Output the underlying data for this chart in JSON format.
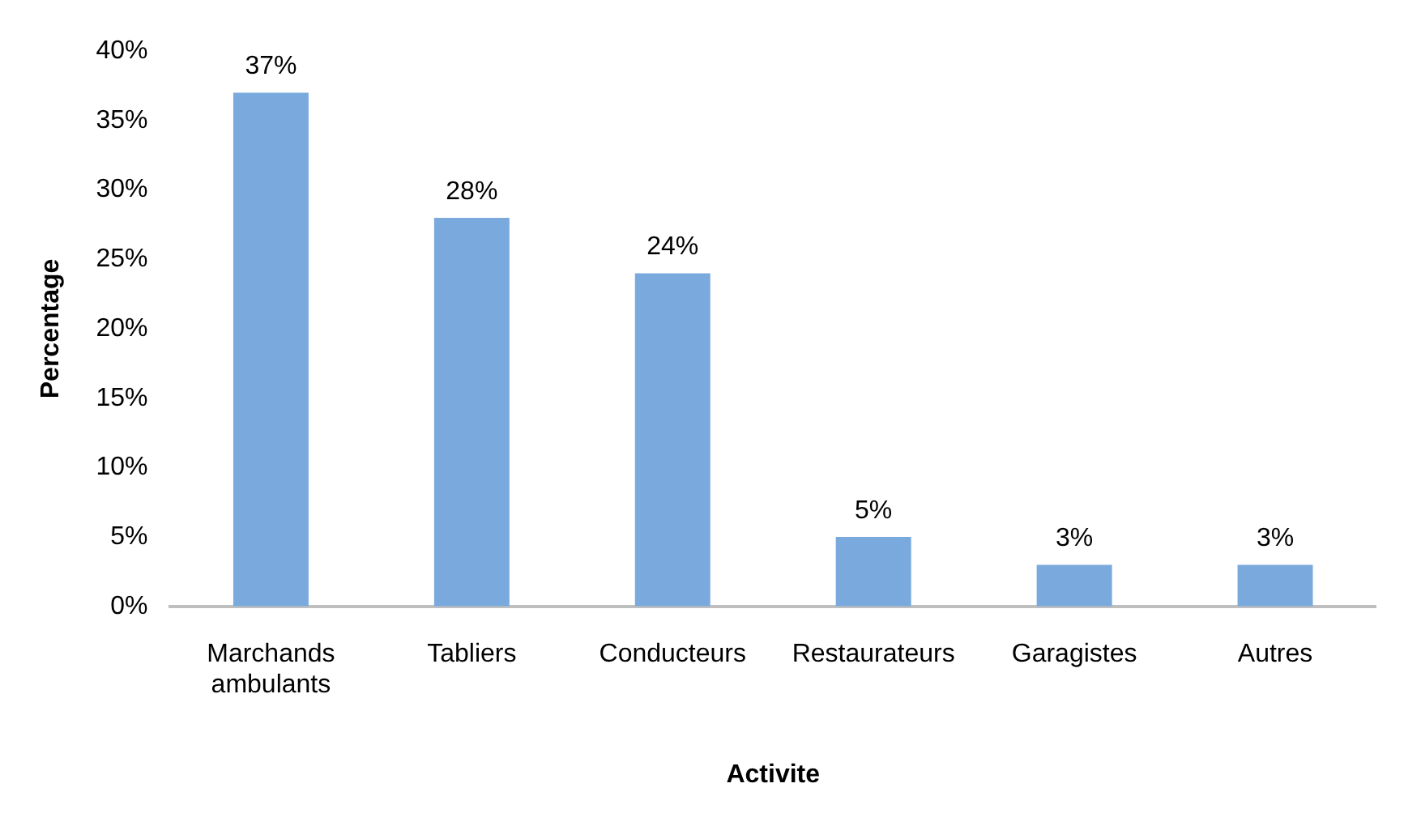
{
  "chart_data": {
    "type": "bar",
    "xlabel": "Activite",
    "ylabel": "Percentage",
    "categories": [
      "Marchands ambulants",
      "Tabliers",
      "Conducteurs",
      "Restaurateurs",
      "Garagistes",
      "Autres"
    ],
    "values": [
      37,
      28,
      24,
      5,
      3,
      3
    ],
    "value_labels": [
      "37%",
      "28%",
      "24%",
      "5%",
      "3%",
      "3%"
    ],
    "color": "#7aaadd",
    "ylim": [
      0,
      40
    ],
    "yticks": [
      {
        "value": 0,
        "label": "0%"
      },
      {
        "value": 5,
        "label": "5%"
      },
      {
        "value": 10,
        "label": "10%"
      },
      {
        "value": 15,
        "label": "15%"
      },
      {
        "value": 20,
        "label": "20%"
      },
      {
        "value": 25,
        "label": "25%"
      },
      {
        "value": 30,
        "label": "30%"
      },
      {
        "value": 35,
        "label": "35%"
      },
      {
        "value": 40,
        "label": "40%"
      }
    ],
    "grid": false,
    "legend": false
  }
}
